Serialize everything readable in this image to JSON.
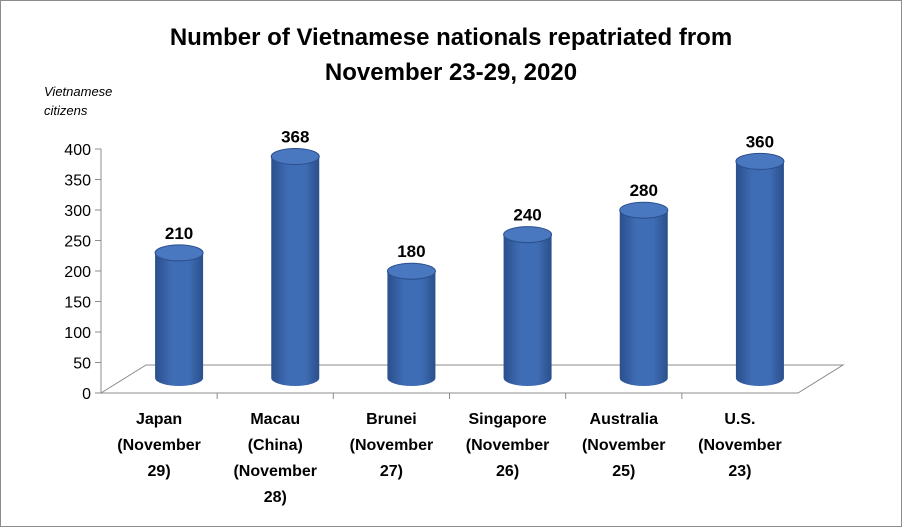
{
  "chart_data": {
    "type": "bar",
    "title_lines": [
      "Number of Vietnamese nationals repatriated from",
      "November 23-29, 2020"
    ],
    "ylabel_lines": [
      "Vietnamese",
      "citizens"
    ],
    "xlabel": "",
    "ylim": [
      0,
      400
    ],
    "yticks": [
      0,
      50,
      100,
      150,
      200,
      250,
      300,
      350,
      400
    ],
    "categories": [
      [
        "Japan",
        "(November",
        "29)"
      ],
      [
        "Macau",
        "(China)",
        "(November",
        "28)"
      ],
      [
        "Brunei",
        "(November",
        "27)"
      ],
      [
        "Singapore",
        "(November",
        "26)"
      ],
      [
        "Australia",
        "(November",
        "25)"
      ],
      [
        "U.S.",
        "(November",
        "23)"
      ]
    ],
    "values": [
      210,
      368,
      180,
      240,
      280,
      360
    ],
    "data_labels": [
      "210",
      "368",
      "180",
      "240",
      "280",
      "360"
    ],
    "bar_style": "3d-cylinder",
    "legend": "none",
    "grid": false,
    "colors": {
      "bar": "#3f6db5",
      "bar_dark": "#2a4f8c",
      "bar_top": "#4a78c0"
    }
  }
}
